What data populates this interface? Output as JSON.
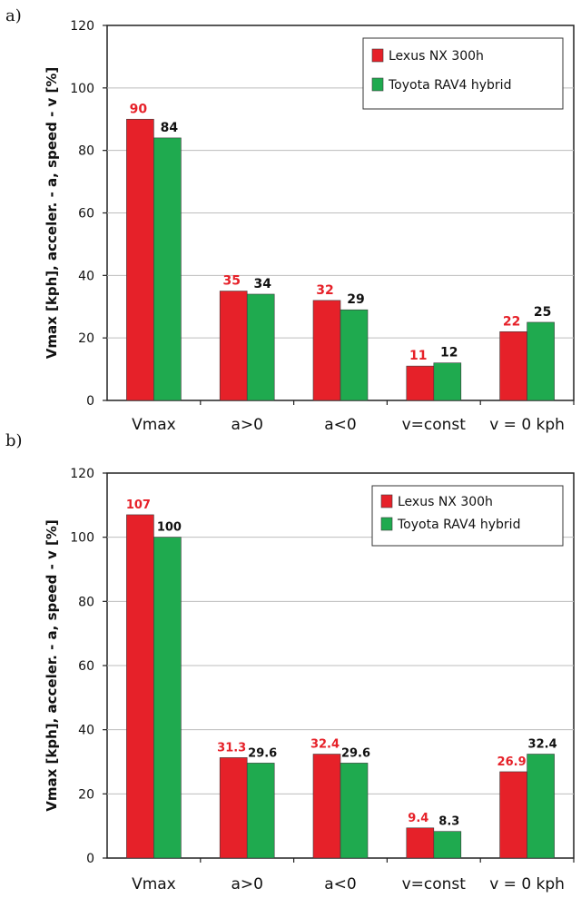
{
  "chart_data": [
    {
      "type": "bar",
      "panel_label": "a)",
      "categories": [
        "Vmax",
        "a>0",
        "a<0",
        "v=const",
        "v = 0 kph"
      ],
      "series": [
        {
          "name": "Lexus NX 300h",
          "color": "#e62129",
          "label_color": "#e62129",
          "values": [
            90,
            35,
            32,
            11,
            22
          ],
          "labels": [
            "90",
            "35",
            "32",
            "11",
            "22"
          ]
        },
        {
          "name": "Toyota RAV4 hybrid",
          "color": "#1faa4f",
          "label_color": "#111111",
          "values": [
            84,
            34,
            29,
            12,
            25
          ],
          "labels": [
            "84",
            "34",
            "29",
            "12",
            "25"
          ]
        }
      ],
      "ylabel": "Vmax [kph], acceler. - a, speed - v  [%]",
      "ylim": [
        0,
        120
      ],
      "yticks": [
        0,
        20,
        40,
        60,
        80,
        100,
        120
      ],
      "grid": true,
      "legend_position": "top-right"
    },
    {
      "type": "bar",
      "panel_label": "b)",
      "categories": [
        "Vmax",
        "a>0",
        "a<0",
        "v=const",
        "v = 0 kph"
      ],
      "series": [
        {
          "name": "Lexus NX 300h",
          "color": "#e62129",
          "label_color": "#e62129",
          "values": [
            107,
            31.3,
            32.4,
            9.4,
            26.9
          ],
          "labels": [
            "107",
            "31.3",
            "32.4",
            "9.4",
            "26.9"
          ]
        },
        {
          "name": "Toyota RAV4 hybrid",
          "color": "#1faa4f",
          "label_color": "#111111",
          "values": [
            100,
            29.6,
            29.6,
            8.3,
            32.4
          ],
          "labels": [
            "100",
            "29.6",
            "29.6",
            "8.3",
            "32.4"
          ]
        }
      ],
      "ylabel": "Vmax [kph], acceler. - a, speed - v  [%]",
      "ylim": [
        0,
        120
      ],
      "yticks": [
        0,
        20,
        40,
        60,
        80,
        100,
        120
      ],
      "grid": true,
      "legend_position": "top-right"
    }
  ]
}
